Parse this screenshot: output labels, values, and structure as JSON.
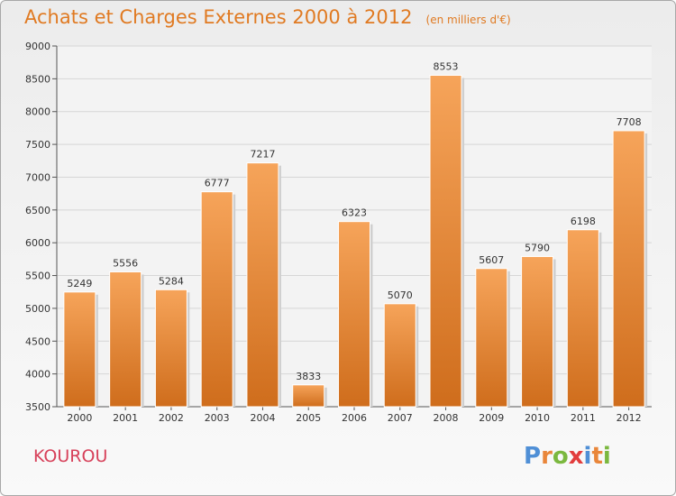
{
  "header": {
    "title": "Achats et Charges Externes 2000 à 2012",
    "subtitle": "(en milliers d'€)"
  },
  "footer": {
    "city": "KOUROU",
    "brand": "Proxiti"
  },
  "colors": {
    "title": "#e07a22",
    "city": "#d7415a",
    "bar_top": "#f6a45a",
    "bar_bottom": "#cf6d1c",
    "brand_letters": [
      "#4f8fd6",
      "#e9863a",
      "#7bb83f",
      "#e23c3c",
      "#4f8fd6",
      "#e9863a",
      "#7bb83f"
    ]
  },
  "chart_data": {
    "type": "bar",
    "title": "Achats et Charges Externes 2000 à 2012",
    "subtitle": "(en milliers d'€)",
    "categories": [
      "2000",
      "2001",
      "2002",
      "2003",
      "2004",
      "2005",
      "2006",
      "2007",
      "2008",
      "2009",
      "2010",
      "2011",
      "2012"
    ],
    "values": [
      5249,
      5556,
      5284,
      6777,
      7217,
      3833,
      6323,
      5070,
      8553,
      5607,
      5790,
      6198,
      7708
    ],
    "ylim": [
      3500,
      9000
    ],
    "yticks": [
      3500,
      4000,
      4500,
      5000,
      5500,
      6000,
      6500,
      7000,
      7500,
      8000,
      8500,
      9000
    ],
    "grid": true,
    "data_labels": true
  }
}
